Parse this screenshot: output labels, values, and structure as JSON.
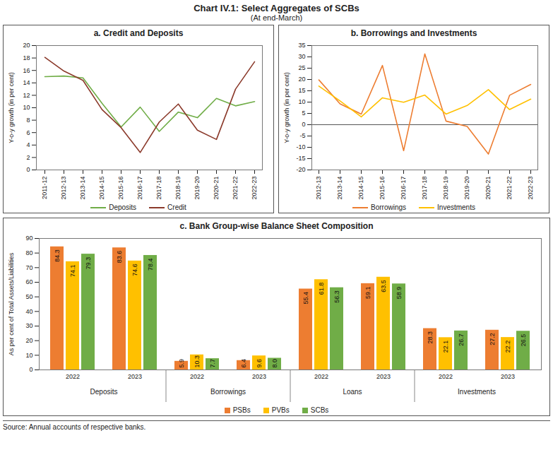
{
  "title": "Chart IV.1: Select Aggregates of SCBs",
  "subtitle": "(At end-March)",
  "source": "Source: Annual accounts of respective banks.",
  "chart_data": [
    {
      "type": "line",
      "title": "a. Credit and Deposits",
      "y_label": "Y-o-y growth (in per cent)",
      "categories": [
        "2011-12",
        "2012-13",
        "2013-14",
        "2014-15",
        "2015-16",
        "2016-17",
        "2017-18",
        "2018-19",
        "2019-20",
        "2020-21",
        "2021-22",
        "2022-23"
      ],
      "series": [
        {
          "name": "Deposits",
          "color": "#70AD47",
          "values": [
            15.0,
            15.1,
            14.8,
            10.7,
            6.9,
            10.1,
            6.2,
            9.3,
            8.4,
            11.5,
            10.3,
            11.0
          ]
        },
        {
          "name": "Credit",
          "color": "#8B3A2B",
          "values": [
            18.1,
            15.9,
            14.4,
            9.7,
            6.8,
            2.8,
            7.7,
            10.6,
            6.4,
            4.9,
            13.0,
            17.4
          ]
        }
      ],
      "ylim": [
        0,
        20
      ],
      "yticks": [
        0,
        2,
        4,
        6,
        8,
        10,
        12,
        14,
        16,
        18,
        20
      ],
      "grid": false
    },
    {
      "type": "line",
      "title": "b. Borrowings and Investments",
      "y_label": "Y-o-y growth (in per cent)",
      "categories": [
        "2012-13",
        "2013-14",
        "2014-15",
        "2015-16",
        "2016-17",
        "2017-18",
        "2018-19",
        "2019-20",
        "2020-21",
        "2021-22",
        "2022-23"
      ],
      "series": [
        {
          "name": "Borrowings",
          "color": "#ED7D31",
          "values": [
            19.8,
            9.2,
            4.7,
            26.2,
            -11.5,
            31.3,
            1.6,
            -0.8,
            -13.0,
            13.0,
            17.8
          ]
        },
        {
          "name": "Investments",
          "color": "#FFC000",
          "values": [
            17.1,
            10.5,
            3.5,
            11.9,
            9.9,
            13.1,
            4.7,
            8.5,
            15.5,
            6.7,
            11.3
          ]
        }
      ],
      "ylim": [
        -20,
        35
      ],
      "yticks": [
        -20,
        -15,
        -10,
        -5,
        0,
        5,
        10,
        15,
        20,
        25,
        30,
        35
      ],
      "grid": false
    },
    {
      "type": "bar",
      "title": "c. Bank Group-wise Balance Sheet Composition",
      "y_label": "As per cent of Total Assets/Liabilities",
      "groups": [
        "Deposits",
        "Borrowings",
        "Loans",
        "Investments"
      ],
      "categories": [
        "2022",
        "2023",
        "2022",
        "2023",
        "2022",
        "2023",
        "2022",
        "2023"
      ],
      "series": [
        {
          "name": "PSBs",
          "color": "#ED7D31",
          "values": [
            84.3,
            83.6,
            5.9,
            6.4,
            55.4,
            59.1,
            28.3,
            27.2
          ]
        },
        {
          "name": "PVBs",
          "color": "#FFC000",
          "values": [
            74.1,
            74.6,
            10.3,
            9.6,
            61.8,
            63.5,
            22.1,
            22.2
          ]
        },
        {
          "name": "SCBs",
          "color": "#70AD47",
          "values": [
            79.3,
            78.4,
            7.7,
            8.0,
            56.3,
            58.9,
            26.7,
            26.5
          ],
          "value_labels": [
            "79.3",
            "78.4",
            "7.7",
            "8.0",
            "56.3",
            "58.9",
            "26.7",
            "26.5"
          ]
        }
      ],
      "ylim": [
        0,
        90
      ],
      "yticks": [
        0,
        10,
        20,
        30,
        40,
        50,
        60,
        70,
        80,
        90
      ],
      "grid": false,
      "data_labels": true
    }
  ]
}
